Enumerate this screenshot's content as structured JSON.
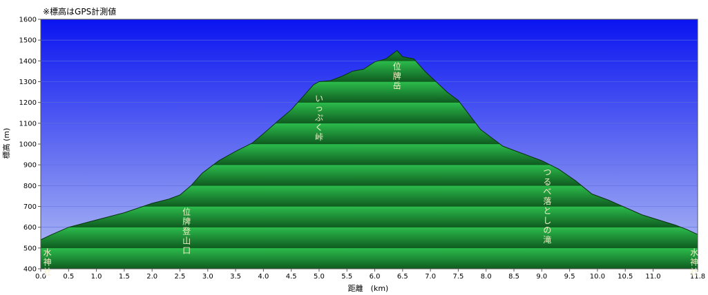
{
  "chart_data": {
    "type": "area",
    "title": "※標高はGPS計測値",
    "xlabel": "距離　(km)",
    "ylabel": "標高 (m)",
    "xlim": [
      0,
      11.8
    ],
    "ylim": [
      400,
      1600
    ],
    "x_ticks": [
      "0.0",
      "0.5",
      "1.0",
      "1.5",
      "2.0",
      "2.5",
      "3.0",
      "3.5",
      "4.0",
      "4.5",
      "5.0",
      "5.5",
      "6.0",
      "6.5",
      "7.0",
      "7.5",
      "8.0",
      "8.5",
      "9.0",
      "9.5",
      "10.0",
      "10.5",
      "11.0",
      "11.8"
    ],
    "y_ticks": [
      "1600",
      "1500",
      "1400",
      "1300",
      "1200",
      "1100",
      "1000",
      "900",
      "800",
      "700",
      "600",
      "500",
      "400"
    ],
    "grid": true,
    "colors": {
      "sky_top": "#0a14f0",
      "sky_bottom": "#b4c0f4",
      "area_light": "#2cbc4c",
      "area_dark": "#0f5c20"
    },
    "series": [
      {
        "x": [
          0.0,
          0.2,
          0.5,
          1.0,
          1.5,
          2.0,
          2.3,
          2.5,
          2.7,
          2.9,
          3.0,
          3.2,
          3.5,
          3.8,
          4.0,
          4.3,
          4.5,
          4.7,
          4.9,
          5.0,
          5.2,
          5.4,
          5.6,
          5.8,
          6.0,
          6.2,
          6.3,
          6.4,
          6.5,
          6.7,
          6.9,
          7.1,
          7.3,
          7.5,
          7.7,
          7.9,
          8.1,
          8.3,
          8.5,
          8.7,
          9.0,
          9.3,
          9.6,
          9.9,
          10.2,
          10.5,
          10.8,
          11.1,
          11.4,
          11.6,
          11.8
        ],
        "y": [
          540,
          565,
          600,
          635,
          670,
          715,
          735,
          755,
          800,
          860,
          880,
          920,
          965,
          1005,
          1050,
          1120,
          1165,
          1225,
          1285,
          1300,
          1305,
          1325,
          1350,
          1360,
          1395,
          1410,
          1430,
          1450,
          1420,
          1410,
          1350,
          1300,
          1250,
          1210,
          1140,
          1070,
          1030,
          990,
          970,
          950,
          920,
          880,
          825,
          760,
          730,
          695,
          660,
          635,
          610,
          590,
          565
        ]
      }
    ],
    "annotations": [
      {
        "text": "水神社",
        "x": 0.12,
        "y": 505
      },
      {
        "text": "位牌登山口",
        "x": 2.62,
        "y": 700
      },
      {
        "text": "いっぷく峠",
        "x": 5.0,
        "y": 1245
      },
      {
        "text": "位牌岳",
        "x": 6.4,
        "y": 1400
      },
      {
        "text": "つるべ落としの滝",
        "x": 9.1,
        "y": 890
      },
      {
        "text": "水神社",
        "x": 11.74,
        "y": 505
      }
    ]
  }
}
